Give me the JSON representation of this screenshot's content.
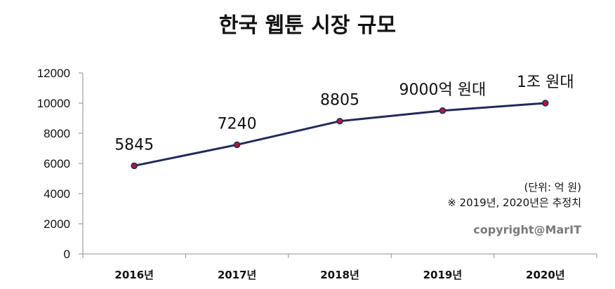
{
  "chart_data": {
    "type": "line",
    "title": "한국 웹툰 시장 규모",
    "categories": [
      "2016년",
      "2017년",
      "2018년",
      "2019년",
      "2020년"
    ],
    "values": [
      5845,
      7240,
      8805,
      9500,
      10000
    ],
    "data_labels": [
      "5845",
      "7240",
      "8805",
      "9000억 원대",
      "1조 원대"
    ],
    "ylim": [
      0,
      12000
    ],
    "yticks": [
      0,
      2000,
      4000,
      6000,
      8000,
      10000,
      12000
    ],
    "ytick_labels": [
      "0",
      "2000",
      "4000",
      "6000",
      "8000",
      "10000",
      "12000"
    ],
    "grid": false,
    "legend": "none",
    "line_color": "#1f2a5c",
    "marker_color": "#b0183a",
    "annotations": {
      "unit": "(단위: 억 원)",
      "note": "※ 2019년, 2020년은 추정치",
      "copyright": "copyright@MarIT"
    }
  }
}
